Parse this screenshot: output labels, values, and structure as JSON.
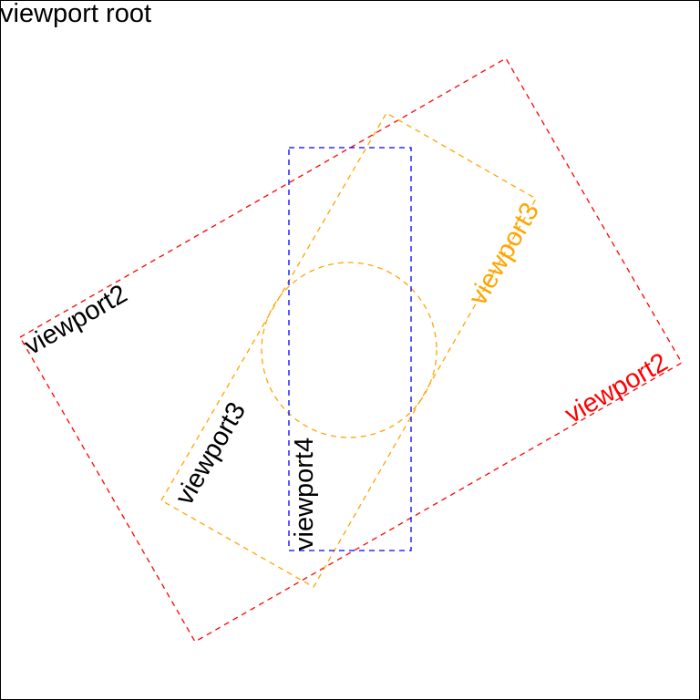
{
  "root": {
    "label": "viewport root",
    "border_color": "#000000"
  },
  "viewports": {
    "viewport2": {
      "label_lower_left": "viewport2",
      "label_lower_left_color": "#000000",
      "label_upper_right": "viewport2",
      "label_upper_right_color": "#ff0000",
      "border_color": "#ff0000",
      "border_style": "dashed"
    },
    "viewport3": {
      "label_lower_left": "viewport3",
      "label_lower_left_color": "#000000",
      "label_upper_right": "viewport3",
      "label_upper_right_color": "#ffa500",
      "border_color": "#ffa500",
      "border_style": "dashed",
      "contains_circle": true
    },
    "viewport4": {
      "label": "viewport4",
      "label_color": "#000000",
      "border_color": "#0000ff",
      "border_style": "dashed"
    }
  }
}
